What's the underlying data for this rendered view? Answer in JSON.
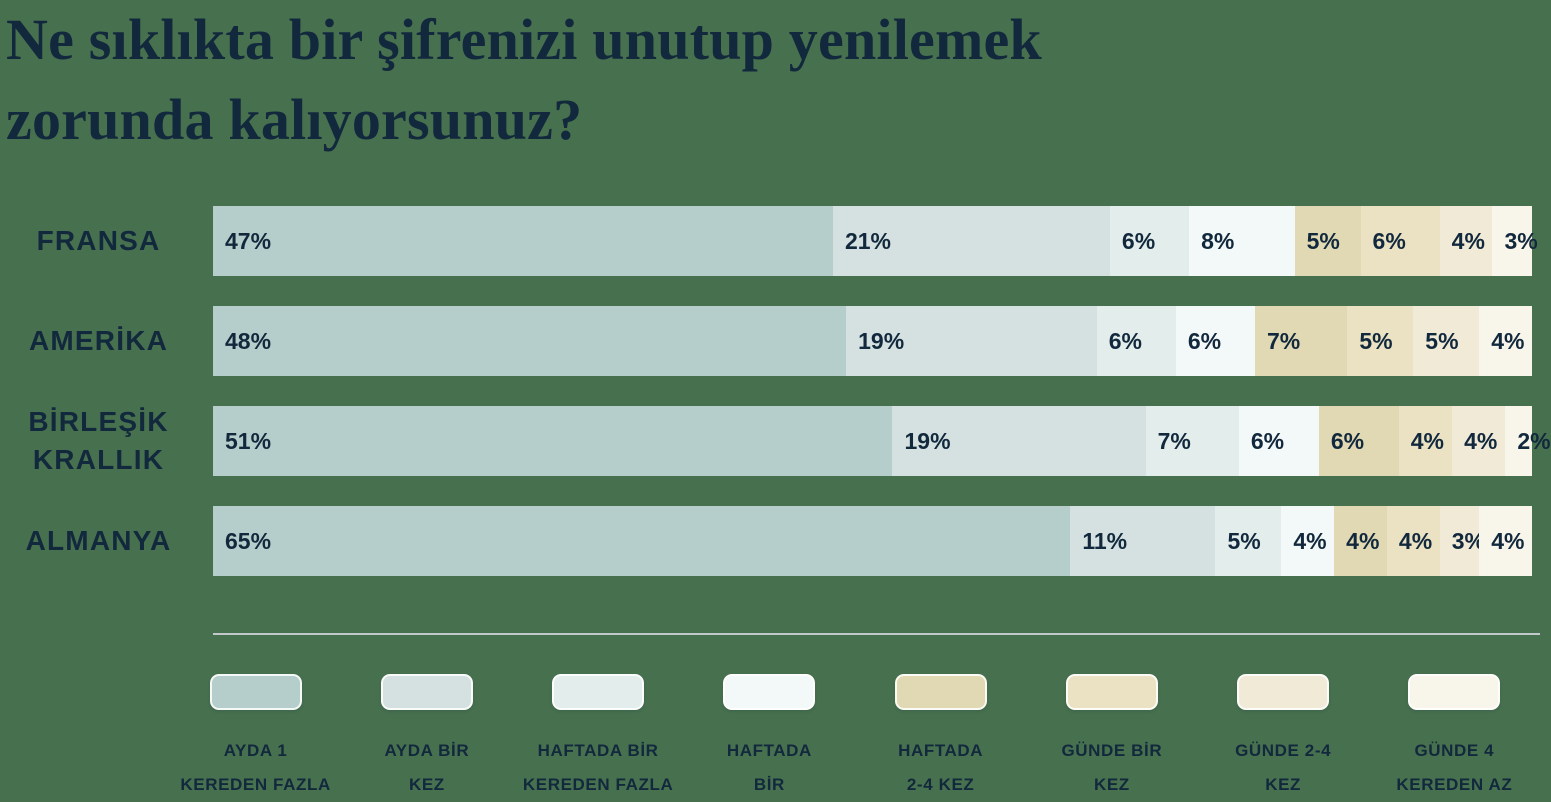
{
  "title_lines": [
    "Ne sıklıkta bir şifrenizi unutup yenilemek",
    "zorunda kalıyorsunuz?"
  ],
  "chart_data": {
    "type": "bar",
    "orientation": "horizontal",
    "stacked": true,
    "unit": "%",
    "legend_position": "bottom",
    "title": "Ne sıklıkta bir şifrenizi unutup yenilemek zorunda kalıyorsunuz?",
    "categories": [
      "FRANSA",
      "AMERİKA",
      "BİRLEŞİK KRALLIK",
      "ALMANYA"
    ],
    "category_label_lines": [
      [
        "FRANSA"
      ],
      [
        "AMERİKA"
      ],
      [
        "BİRLEŞİK",
        "KRALLIK"
      ],
      [
        "ALMANYA"
      ]
    ],
    "series": [
      {
        "name": "AYDA 1 KEREDEN FAZLA",
        "label_lines": [
          "AYDA 1",
          "KEREDEN FAZLA"
        ],
        "color": "#b6cecb",
        "values": [
          47,
          48,
          51,
          65
        ]
      },
      {
        "name": "AYDA BİR KEZ",
        "label_lines": [
          "AYDA BİR",
          "KEZ"
        ],
        "color": "#d4e1e0",
        "values": [
          21,
          19,
          19,
          11
        ]
      },
      {
        "name": "HAFTADA BİR KEREDEN FAZLA",
        "label_lines": [
          "HAFTADA BİR",
          "KEREDEN FAZLA"
        ],
        "color": "#e3edeb",
        "values": [
          6,
          6,
          7,
          5
        ]
      },
      {
        "name": "HAFTADA BİR",
        "label_lines": [
          "HAFTADA",
          "BİR"
        ],
        "color": "#f3f8f8",
        "values": [
          8,
          6,
          6,
          4
        ]
      },
      {
        "name": "HAFTADA 2-4 KEZ",
        "label_lines": [
          "HAFTADA",
          "2-4 KEZ"
        ],
        "color": "#e1d9b3",
        "values": [
          5,
          7,
          6,
          4
        ]
      },
      {
        "name": "GÜNDE BİR KEZ",
        "label_lines": [
          "GÜNDE BİR",
          "KEZ"
        ],
        "color": "#eae2c3",
        "values": [
          6,
          5,
          4,
          4
        ]
      },
      {
        "name": "GÜNDE 2-4 KEZ",
        "label_lines": [
          "GÜNDE 2-4",
          "KEZ"
        ],
        "color": "#f0ead7",
        "values": [
          4,
          5,
          4,
          3
        ]
      },
      {
        "name": "GÜNDE 4 KEREDEN AZ",
        "label_lines": [
          "GÜNDE 4",
          "KEREDEN AZ"
        ],
        "color": "#f8f5ea",
        "values": [
          3,
          4,
          2,
          4
        ]
      }
    ],
    "value_labels": [
      [
        "47%",
        "21%",
        "6%",
        "8%",
        "5%",
        "6%",
        "4%",
        "3%"
      ],
      [
        "48%",
        "19%",
        "6%",
        "6%",
        "7%",
        "5%",
        "5%",
        "4%"
      ],
      [
        "51%",
        "19%",
        "7%",
        "6%",
        "6%",
        "4%",
        "4%",
        "2%"
      ],
      [
        "65%",
        "11%",
        "5%",
        "4%",
        "4%",
        "4%",
        "3%",
        "4%"
      ]
    ]
  },
  "colors": {
    "background": "#47704f",
    "text": "#12283c",
    "divider": "#c2c8cb"
  }
}
